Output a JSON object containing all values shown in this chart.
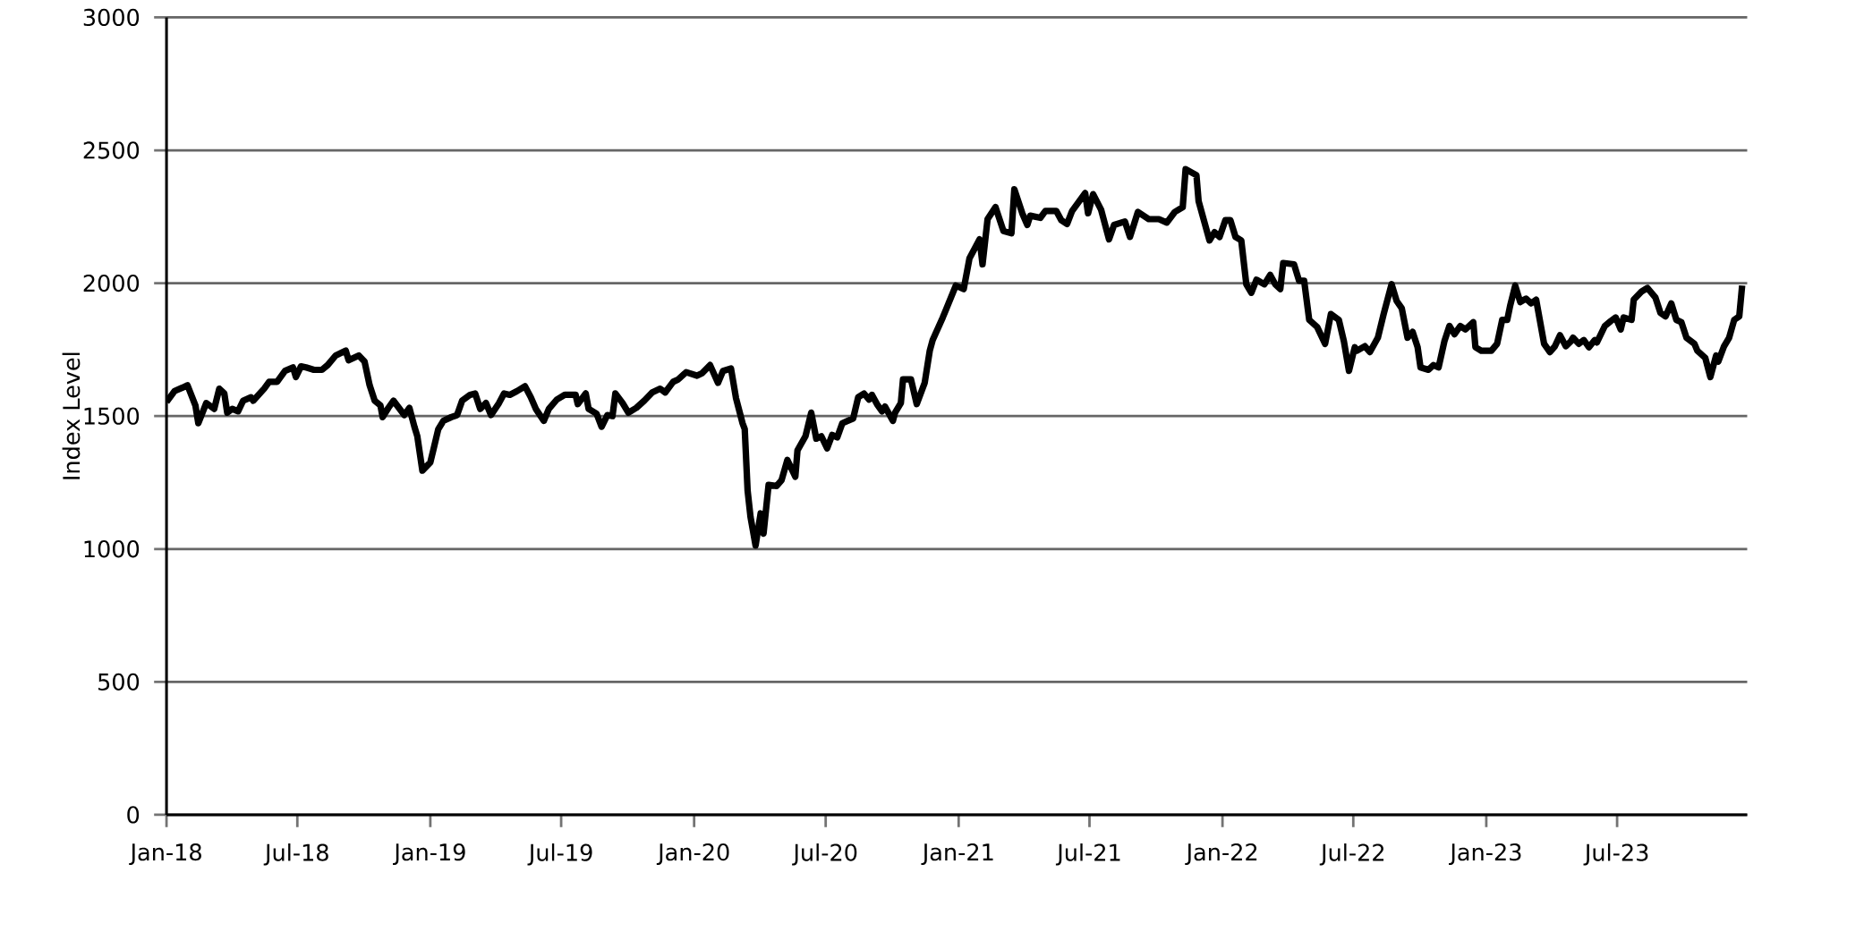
{
  "chart_data": {
    "type": "line",
    "ylabel": "Index Level",
    "grid": "y",
    "color": "#000000",
    "xlim": [
      "2018-01-01",
      "2023-12-28"
    ],
    "ylim": [
      0,
      3000
    ],
    "xticks": [
      {
        "value": "2018-01-01",
        "label": "Jan-18"
      },
      {
        "value": "2018-07-01",
        "label": "Jul-18"
      },
      {
        "value": "2019-01-01",
        "label": "Jan-19"
      },
      {
        "value": "2019-07-01",
        "label": "Jul-19"
      },
      {
        "value": "2020-01-01",
        "label": "Jan-20"
      },
      {
        "value": "2020-07-01",
        "label": "Jul-20"
      },
      {
        "value": "2021-01-01",
        "label": "Jan-21"
      },
      {
        "value": "2021-07-01",
        "label": "Jul-21"
      },
      {
        "value": "2022-01-01",
        "label": "Jan-22"
      },
      {
        "value": "2022-07-01",
        "label": "Jul-22"
      },
      {
        "value": "2023-01-01",
        "label": "Jan-23"
      },
      {
        "value": "2023-07-01",
        "label": "Jul-23"
      }
    ],
    "yticks": [
      0,
      500,
      1000,
      1500,
      2000,
      2500,
      3000
    ],
    "x": [
      "2018-01-01",
      "2018-01-12",
      "2018-01-23",
      "2018-01-30",
      "2018-02-10",
      "2018-02-14",
      "2018-02-25",
      "2018-03-08",
      "2018-03-15",
      "2018-03-22",
      "2018-03-26",
      "2018-04-02",
      "2018-04-10",
      "2018-04-17",
      "2018-04-28",
      "2018-05-01",
      "2018-05-16",
      "2018-05-23",
      "2018-06-03",
      "2018-06-14",
      "2018-06-25",
      "2018-06-29",
      "2018-07-06",
      "2018-07-13",
      "2018-07-24",
      "2018-08-04",
      "2018-08-12",
      "2018-08-23",
      "2018-09-06",
      "2018-09-10",
      "2018-09-24",
      "2018-10-02",
      "2018-10-09",
      "2018-10-16",
      "2018-10-24",
      "2018-10-27",
      "2018-11-04",
      "2018-11-11",
      "2018-11-26",
      "2018-12-03",
      "2018-12-10",
      "2018-12-14",
      "2018-12-21",
      "2019-01-01",
      "2019-01-05",
      "2019-01-12",
      "2019-01-19",
      "2019-01-30",
      "2019-02-07",
      "2019-02-14",
      "2019-02-25",
      "2019-03-04",
      "2019-03-11",
      "2019-03-19",
      "2019-03-26",
      "2019-04-06",
      "2019-04-13",
      "2019-04-21",
      "2019-05-01",
      "2019-05-12",
      "2019-05-20",
      "2019-05-27",
      "2019-06-07",
      "2019-06-14",
      "2019-06-25",
      "2019-07-06",
      "2019-07-21",
      "2019-07-24",
      "2019-08-04",
      "2019-08-08",
      "2019-08-19",
      "2019-08-26",
      "2019-09-03",
      "2019-09-10",
      "2019-09-14",
      "2019-09-24",
      "2019-10-02",
      "2019-10-13",
      "2019-10-24",
      "2019-11-04",
      "2019-11-15",
      "2019-11-22",
      "2019-12-03",
      "2019-12-10",
      "2019-12-21",
      "2020-01-05",
      "2020-01-12",
      "2020-01-23",
      "2020-02-03",
      "2020-02-10",
      "2020-02-21",
      "2020-02-28",
      "2020-03-08",
      "2020-03-11",
      "2020-03-15",
      "2020-03-19",
      "2020-03-26",
      "2020-04-02",
      "2020-04-06",
      "2020-04-13",
      "2020-04-24",
      "2020-05-01",
      "2020-05-09",
      "2020-05-20",
      "2020-05-23",
      "2020-06-03",
      "2020-06-11",
      "2020-06-18",
      "2020-06-25",
      "2020-07-03",
      "2020-07-10",
      "2020-07-17",
      "2020-07-24",
      "2020-07-28",
      "2020-08-08",
      "2020-08-15",
      "2020-08-23",
      "2020-08-30",
      "2020-09-03",
      "2020-09-10",
      "2020-09-17",
      "2020-09-21",
      "2020-10-02",
      "2020-10-05",
      "2020-10-13",
      "2020-10-16",
      "2020-10-27",
      "2020-11-04",
      "2020-11-15",
      "2020-11-22",
      "2020-11-26",
      "2020-12-10",
      "2020-12-14",
      "2020-12-28",
      "2021-01-08",
      "2021-01-16",
      "2021-01-30",
      "2021-02-03",
      "2021-02-10",
      "2021-02-21",
      "2021-03-04",
      "2021-03-15",
      "2021-03-19",
      "2021-03-30",
      "2021-04-06",
      "2021-04-10",
      "2021-04-24",
      "2021-05-01",
      "2021-05-16",
      "2021-05-23",
      "2021-05-31",
      "2021-06-07",
      "2021-06-25",
      "2021-06-29",
      "2021-07-06",
      "2021-07-17",
      "2021-07-28",
      "2021-08-04",
      "2021-08-19",
      "2021-08-26",
      "2021-09-06",
      "2021-09-21",
      "2021-10-05",
      "2021-10-16",
      "2021-10-27",
      "2021-11-07",
      "2021-11-11",
      "2021-11-26",
      "2021-11-29",
      "2021-12-14",
      "2021-12-21",
      "2021-12-28",
      "2022-01-05",
      "2022-01-12",
      "2022-01-19",
      "2022-01-27",
      "2022-02-03",
      "2022-02-10",
      "2022-02-17",
      "2022-02-28",
      "2022-03-08",
      "2022-03-15",
      "2022-03-22",
      "2022-03-26",
      "2022-04-10",
      "2022-04-17",
      "2022-04-24",
      "2022-05-01",
      "2022-05-12",
      "2022-05-23",
      "2022-05-31",
      "2022-06-11",
      "2022-06-18",
      "2022-06-25",
      "2022-07-03",
      "2022-07-06",
      "2022-07-17",
      "2022-07-24",
      "2022-08-04",
      "2022-08-12",
      "2022-08-23",
      "2022-08-30",
      "2022-09-06",
      "2022-09-14",
      "2022-09-21",
      "2022-09-28",
      "2022-10-02",
      "2022-10-13",
      "2022-10-20",
      "2022-10-27",
      "2022-11-04",
      "2022-11-11",
      "2022-11-18",
      "2022-11-26",
      "2022-12-03",
      "2022-12-14",
      "2022-12-17",
      "2022-12-25",
      "2023-01-08",
      "2023-01-16",
      "2023-01-23",
      "2023-01-30",
      "2023-02-03",
      "2023-02-10",
      "2023-02-17",
      "2023-02-25",
      "2023-03-04",
      "2023-03-11",
      "2023-03-22",
      "2023-03-30",
      "2023-04-06",
      "2023-04-13",
      "2023-04-21",
      "2023-04-28",
      "2023-05-01",
      "2023-05-09",
      "2023-05-16",
      "2023-05-23",
      "2023-05-31",
      "2023-06-03",
      "2023-06-14",
      "2023-06-22",
      "2023-06-29",
      "2023-07-06",
      "2023-07-10",
      "2023-07-21",
      "2023-07-24",
      "2023-08-04",
      "2023-08-12",
      "2023-08-23",
      "2023-08-30",
      "2023-09-06",
      "2023-09-14",
      "2023-09-21",
      "2023-09-28",
      "2023-10-05",
      "2023-10-16",
      "2023-10-20",
      "2023-10-31",
      "2023-11-07",
      "2023-11-15",
      "2023-11-18",
      "2023-11-26",
      "2023-12-03",
      "2023-12-10",
      "2023-12-17",
      "2023-12-21"
    ],
    "values": [
      1553,
      1594,
      1607,
      1616,
      1540,
      1473,
      1549,
      1527,
      1603,
      1585,
      1513,
      1527,
      1518,
      1558,
      1571,
      1558,
      1603,
      1629,
      1629,
      1670,
      1683,
      1647,
      1687,
      1683,
      1674,
      1674,
      1692,
      1728,
      1746,
      1710,
      1728,
      1705,
      1616,
      1558,
      1540,
      1496,
      1531,
      1558,
      1504,
      1531,
      1460,
      1424,
      1295,
      1326,
      1371,
      1451,
      1482,
      1496,
      1504,
      1558,
      1580,
      1585,
      1527,
      1549,
      1504,
      1549,
      1585,
      1580,
      1594,
      1612,
      1571,
      1527,
      1482,
      1527,
      1562,
      1580,
      1580,
      1545,
      1585,
      1527,
      1509,
      1460,
      1504,
      1500,
      1585,
      1549,
      1513,
      1531,
      1558,
      1589,
      1603,
      1589,
      1629,
      1638,
      1665,
      1652,
      1661,
      1692,
      1625,
      1670,
      1679,
      1567,
      1473,
      1451,
      1219,
      1121,
      1013,
      1134,
      1058,
      1241,
      1237,
      1259,
      1335,
      1272,
      1371,
      1424,
      1513,
      1415,
      1424,
      1379,
      1429,
      1420,
      1473,
      1478,
      1491,
      1571,
      1585,
      1562,
      1580,
      1545,
      1518,
      1536,
      1482,
      1513,
      1549,
      1638,
      1638,
      1545,
      1625,
      1746,
      1786,
      1871,
      1897,
      1991,
      1978,
      2094,
      2165,
      2071,
      2241,
      2286,
      2196,
      2188,
      2353,
      2263,
      2219,
      2254,
      2246,
      2272,
      2272,
      2237,
      2223,
      2272,
      2339,
      2263,
      2335,
      2277,
      2165,
      2219,
      2232,
      2174,
      2268,
      2241,
      2241,
      2228,
      2268,
      2286,
      2429,
      2406,
      2308,
      2161,
      2192,
      2174,
      2237,
      2237,
      2174,
      2161,
      1996,
      1964,
      2013,
      1996,
      2031,
      1996,
      1978,
      2076,
      2071,
      2009,
      2009,
      1862,
      1835,
      1772,
      1884,
      1862,
      1781,
      1670,
      1759,
      1746,
      1763,
      1741,
      1795,
      1884,
      1996,
      1933,
      1906,
      1795,
      1817,
      1759,
      1683,
      1674,
      1692,
      1683,
      1781,
      1839,
      1808,
      1839,
      1826,
      1853,
      1759,
      1746,
      1746,
      1772,
      1862,
      1862,
      1915,
      1991,
      1929,
      1942,
      1924,
      1938,
      1772,
      1741,
      1763,
      1804,
      1763,
      1781,
      1795,
      1772,
      1786,
      1759,
      1786,
      1777,
      1839,
      1857,
      1871,
      1826,
      1871,
      1862,
      1938,
      1969,
      1982,
      1946,
      1888,
      1875,
      1924,
      1862,
      1853,
      1795,
      1772,
      1746,
      1719,
      1647,
      1728,
      1705,
      1763,
      1795,
      1862,
      1875,
      1991
    ]
  }
}
